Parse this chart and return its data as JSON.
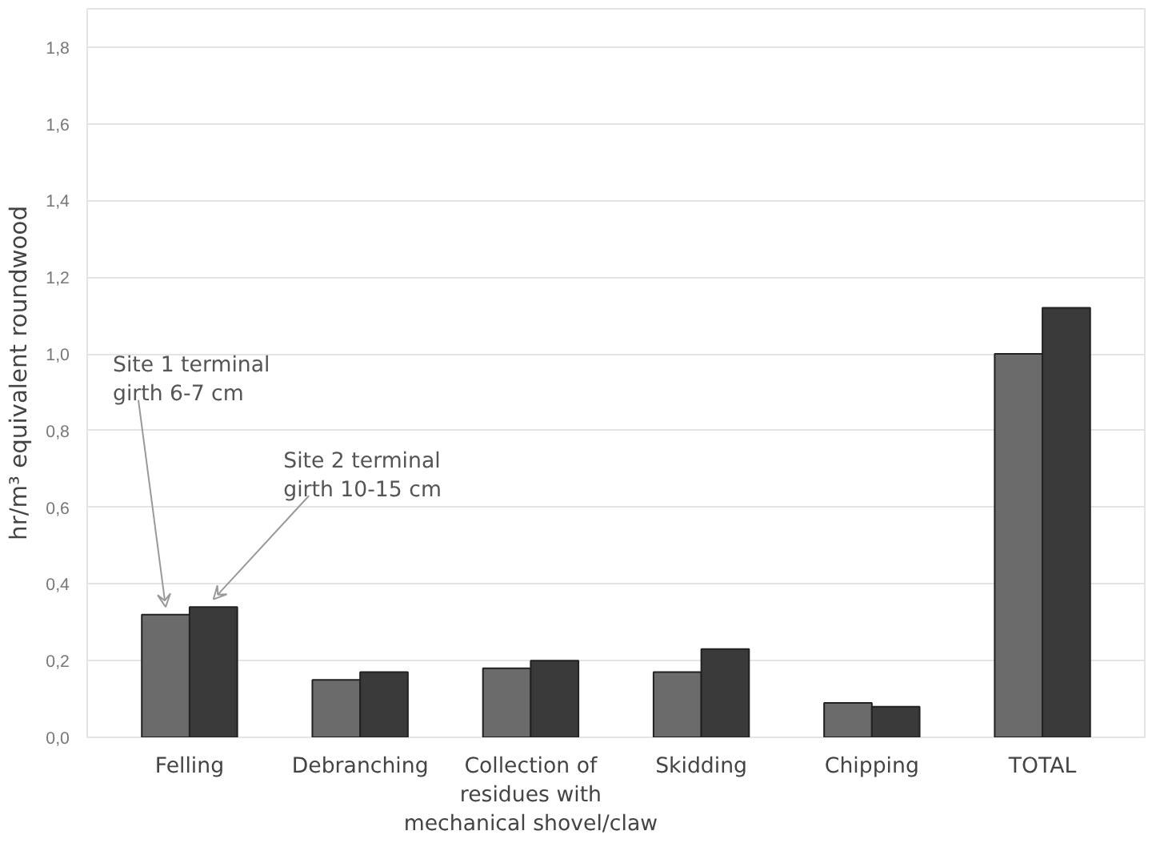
{
  "chart_data": {
    "type": "bar",
    "ylabel": "hr/m³ equivalent roundwood",
    "categories": [
      "Felling",
      "Debranching",
      "Collection of\nresidues with\nmechanical shovel/claw",
      "Skidding",
      "Chipping",
      "TOTAL"
    ],
    "series": [
      {
        "name": "Site 1 terminal\ngirth 6-7 cm",
        "color": "#6b6b6b",
        "values": [
          0.32,
          0.15,
          0.18,
          0.17,
          0.09,
          1.0
        ]
      },
      {
        "name": "Site 2 terminal\ngirth 10-15 cm",
        "color": "#3a3a3a",
        "values": [
          0.34,
          0.17,
          0.2,
          0.23,
          0.08,
          1.12
        ]
      }
    ],
    "ylim": [
      0,
      1.9
    ],
    "yticks": [
      {
        "value": 0,
        "label": "0,0"
      },
      {
        "value": 0.2,
        "label": "0,2"
      },
      {
        "value": 0.4,
        "label": "0,4"
      },
      {
        "value": 0.6,
        "label": "0,6"
      },
      {
        "value": 0.8,
        "label": "0,8"
      },
      {
        "value": 1.0,
        "label": "1,0"
      },
      {
        "value": 1.2,
        "label": "1,2"
      },
      {
        "value": 1.4,
        "label": "1,4"
      },
      {
        "value": 1.6,
        "label": "1,6"
      },
      {
        "value": 1.8,
        "label": "1,8"
      }
    ],
    "grid": "y"
  }
}
